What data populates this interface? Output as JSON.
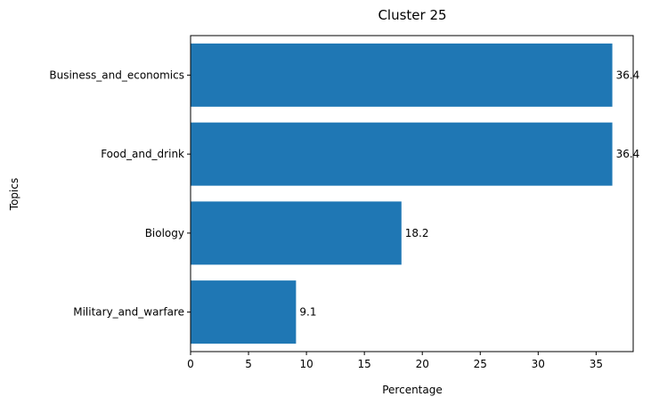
{
  "chart_data": {
    "type": "bar",
    "orientation": "horizontal",
    "title": "Cluster 25",
    "xlabel": "Percentage",
    "ylabel": "Topics",
    "categories": [
      "Business_and_economics",
      "Food_and_drink",
      "Biology",
      "Military_and_warfare"
    ],
    "values": [
      36.4,
      36.4,
      18.2,
      9.1
    ],
    "data_labels": [
      "36.4",
      "36.4",
      "18.2",
      "9.1"
    ],
    "xlim": [
      0,
      38.2
    ],
    "xticks": [
      0,
      5,
      10,
      15,
      20,
      25,
      30,
      35
    ],
    "bar_color": "#1f77b4",
    "grid": false,
    "legend": "none"
  }
}
